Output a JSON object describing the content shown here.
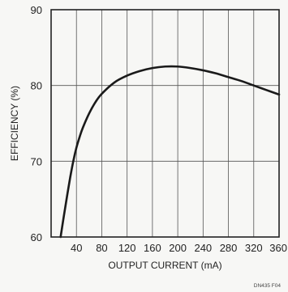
{
  "chart_data": {
    "type": "line",
    "title": "",
    "xlabel": "OUTPUT CURRENT (mA)",
    "ylabel": "EFFICIENCY (%)",
    "xlim": [
      0,
      360
    ],
    "ylim": [
      60,
      90
    ],
    "x_ticks": [
      40,
      80,
      120,
      160,
      200,
      240,
      280,
      320,
      360
    ],
    "y_ticks": [
      60,
      70,
      80,
      90
    ],
    "grid": true,
    "series": [
      {
        "x": [
          15,
          20,
          25,
          30,
          35,
          40,
          45,
          50,
          60,
          70,
          80,
          100,
          120,
          140,
          160,
          180,
          200,
          220,
          240,
          260,
          280,
          300,
          320,
          340,
          360
        ],
        "y": [
          60,
          62.7,
          65.3,
          67.8,
          70.0,
          71.8,
          73.2,
          74.4,
          76.3,
          77.8,
          78.9,
          80.4,
          81.3,
          81.9,
          82.3,
          82.5,
          82.5,
          82.3,
          82.0,
          81.6,
          81.1,
          80.6,
          80.0,
          79.4,
          78.8
        ]
      }
    ],
    "footnote": "DN435 F04"
  }
}
